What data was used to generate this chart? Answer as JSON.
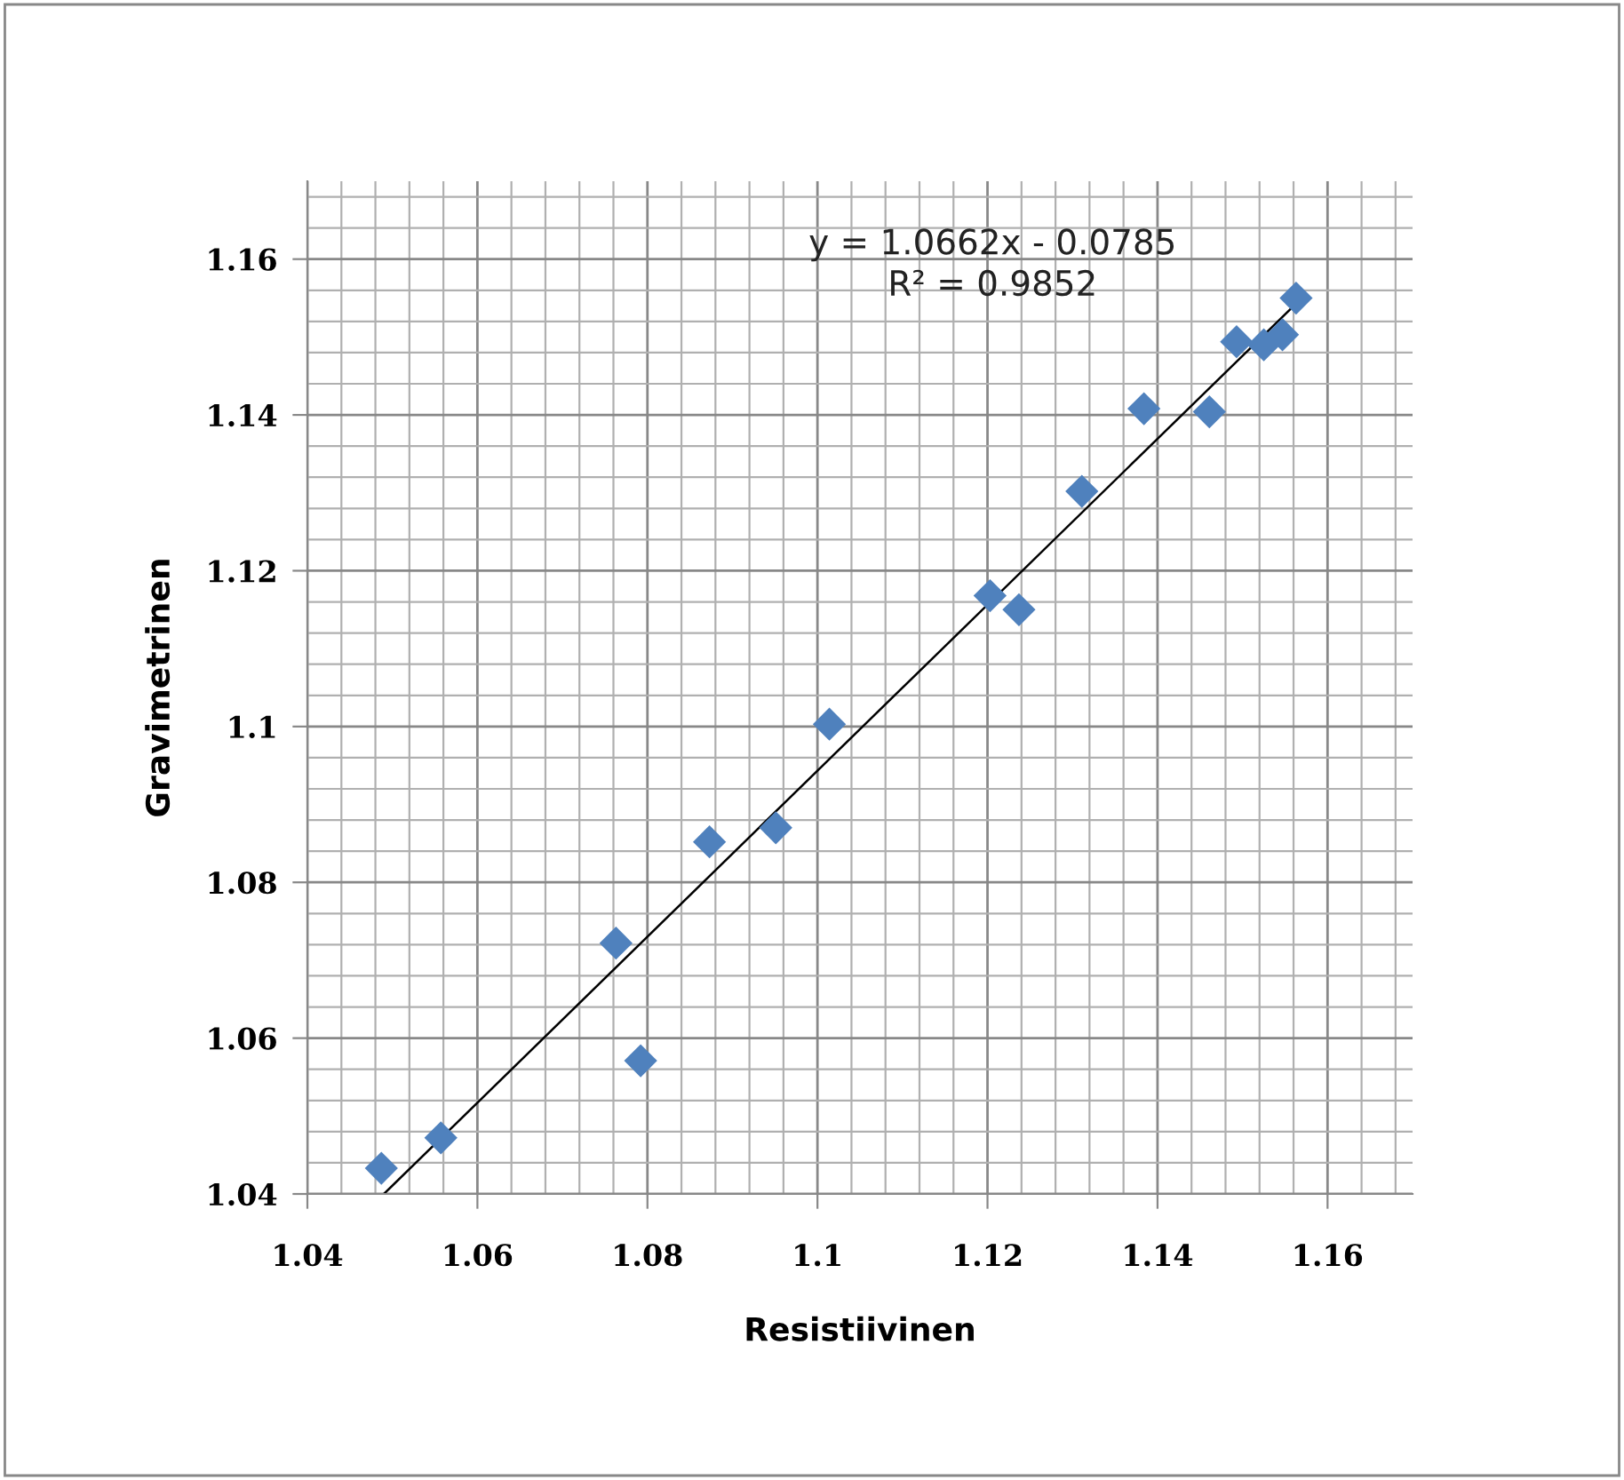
{
  "chart_data": {
    "type": "scatter",
    "xlabel": "Resistiivinen",
    "ylabel": "Gravimetrinen",
    "xlim": [
      1.04,
      1.17
    ],
    "ylim": [
      1.04,
      1.17
    ],
    "xticks": [
      1.04,
      1.06,
      1.08,
      {
        "value": 1.1,
        "label": "1.1"
      },
      1.12,
      1.14,
      1.16
    ],
    "yticks": [
      1.04,
      1.06,
      1.08,
      {
        "value": 1.1,
        "label": "1.1"
      },
      1.12,
      1.14,
      1.16
    ],
    "grid": true,
    "series": [
      {
        "color": "#4f81bd",
        "marker": "diamond",
        "x": [
          1.0487,
          1.0557,
          1.0763,
          1.0792,
          1.0873,
          1.0951,
          1.1014,
          1.1203,
          1.1237,
          1.1311,
          1.1384,
          1.1461,
          1.1493,
          1.1525,
          1.1547,
          1.1563
        ],
        "values": [
          1.0433,
          1.0472,
          1.0722,
          1.0571,
          1.0852,
          1.087,
          1.1003,
          1.1168,
          1.115,
          1.1302,
          1.1408,
          1.1404,
          1.1494,
          1.149,
          1.1503,
          1.155
        ]
      },
      {
        "type": "line",
        "marker": "none",
        "color": "#000000",
        "x": [
          1.049,
          1.1563
        ],
        "values": [
          1.04,
          1.1543
        ]
      }
    ],
    "annotations": [
      "y = 1.0662x - 0.0785\nR² = 0.9852"
    ]
  }
}
